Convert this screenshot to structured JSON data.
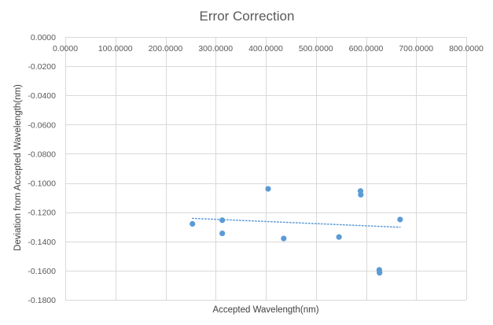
{
  "chart_data": {
    "type": "scatter",
    "title": "Error Correction",
    "xlabel": "Accepted Wavelength(nm)",
    "ylabel": "Deviation from Accepted Wavelength(nm)",
    "xlim": [
      0,
      800
    ],
    "ylim": [
      -0.18,
      0
    ],
    "x_ticks": [
      0,
      100,
      200,
      300,
      400,
      500,
      600,
      700,
      800
    ],
    "y_ticks": [
      0,
      -0.02,
      -0.04,
      -0.06,
      -0.08,
      -0.1,
      -0.12,
      -0.14,
      -0.16,
      -0.18
    ],
    "x_tick_labels": [
      "0.0000",
      "100.0000",
      "200.0000",
      "300.0000",
      "400.0000",
      "500.0000",
      "600.0000",
      "700.0000",
      "800.0000"
    ],
    "y_tick_labels": [
      "0.0000",
      "-0.0200",
      "-0.0400",
      "-0.0600",
      "-0.0800",
      "-0.1000",
      "-0.1200",
      "-0.1400",
      "-0.1600",
      "-0.1800"
    ],
    "x_axis_position": "top",
    "grid": true,
    "legend": "none",
    "series": [
      {
        "points": [
          {
            "x": 253.7,
            "y": -0.128
          },
          {
            "x": 313.2,
            "y": -0.1255
          },
          {
            "x": 313.2,
            "y": -0.1345
          },
          {
            "x": 404.7,
            "y": -0.104
          },
          {
            "x": 435.8,
            "y": -0.138
          },
          {
            "x": 546.1,
            "y": -0.137
          },
          {
            "x": 589.0,
            "y": -0.1055
          },
          {
            "x": 589.6,
            "y": -0.108
          },
          {
            "x": 626.5,
            "y": -0.1595
          },
          {
            "x": 627.0,
            "y": -0.1615
          },
          {
            "x": 668.0,
            "y": -0.125
          }
        ],
        "color": "#5B9BD5"
      }
    ],
    "trendline": {
      "type": "linear",
      "x_range": [
        253.7,
        668.0
      ],
      "y_range": [
        -0.1242,
        -0.1303
      ],
      "color": "#5B9BD5",
      "style": "dotted"
    },
    "colors": {
      "gridline": "#D9D9D9",
      "text": "#595959"
    }
  }
}
